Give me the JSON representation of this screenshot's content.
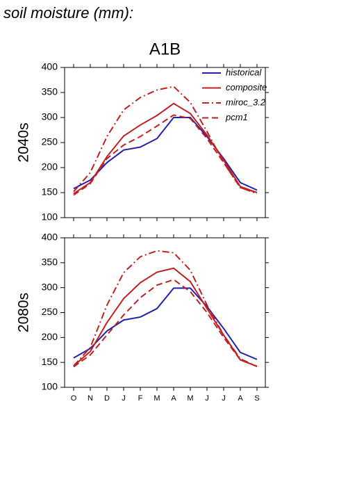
{
  "title": "soil moisture (mm):",
  "chart_data": [
    {
      "type": "line",
      "title": "A1B",
      "ylabel": "2040s",
      "categories": [
        null,
        null,
        null,
        null,
        null,
        null,
        null,
        null,
        null,
        null,
        null,
        null
      ],
      "ylim": [
        100,
        400
      ],
      "yticks": [
        100,
        150,
        200,
        250,
        300,
        350,
        400
      ],
      "legend": "upper right",
      "series": [
        {
          "name": "historical",
          "color": "#2020b0",
          "dash": "solid",
          "values": [
            158,
            175,
            210,
            235,
            241,
            258,
            300,
            300,
            262,
            218,
            170,
            155
          ]
        },
        {
          "name": "composite",
          "color": "#c02020",
          "dash": "solid",
          "values": [
            148,
            170,
            222,
            263,
            285,
            304,
            328,
            308,
            265,
            215,
            162,
            150
          ]
        },
        {
          "name": "miroc_3.2",
          "color": "#c02020",
          "dash": "dashdot",
          "values": [
            152,
            190,
            262,
            315,
            340,
            355,
            362,
            330,
            272,
            210,
            160,
            148
          ]
        },
        {
          "name": "pcm1",
          "color": "#c02020",
          "dash": "dashed",
          "values": [
            145,
            168,
            218,
            245,
            262,
            283,
            305,
            298,
            258,
            210,
            160,
            150
          ]
        }
      ]
    },
    {
      "type": "line",
      "ylabel": "2080s",
      "categories": [
        "O",
        "N",
        "D",
        "J",
        "F",
        "M",
        "A",
        "M",
        "J",
        "J",
        "A",
        "S"
      ],
      "ylim": [
        100,
        400
      ],
      "yticks": [
        100,
        150,
        200,
        250,
        300,
        350,
        400
      ],
      "series": [
        {
          "color": "#2020b0",
          "dash": "solid",
          "values": [
            159,
            178,
            213,
            235,
            241,
            258,
            299,
            299,
            262,
            218,
            170,
            156
          ]
        },
        {
          "color": "#c02020",
          "dash": "solid",
          "values": [
            143,
            172,
            230,
            278,
            310,
            331,
            339,
            312,
            258,
            205,
            155,
            142
          ]
        },
        {
          "color": "#c02020",
          "dash": "dashdot",
          "values": [
            143,
            180,
            265,
            330,
            362,
            374,
            370,
            335,
            265,
            205,
            157,
            142
          ]
        },
        {
          "color": "#c02020",
          "dash": "dashed",
          "values": [
            141,
            165,
            205,
            245,
            280,
            305,
            316,
            292,
            250,
            200,
            155,
            142
          ]
        }
      ]
    }
  ]
}
